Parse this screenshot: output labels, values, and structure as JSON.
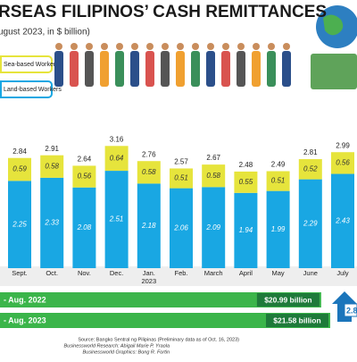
{
  "chart_data": {
    "type": "stacked-bar",
    "title": "RSEAS FILIPINOS’ CASH REMITTANCES",
    "subtitle": "ugust 2023, in $ billion)",
    "categories": [
      "Sept.",
      "Oct.",
      "Nov.",
      "Dec.",
      "Jan.",
      "Feb.",
      "March",
      "April",
      "May",
      "June",
      "July"
    ],
    "year_label": "2023",
    "series": [
      {
        "name": "Land-based Workers",
        "color": "#19a7e3",
        "values": [
          2.25,
          2.33,
          2.08,
          2.51,
          2.18,
          2.06,
          2.09,
          1.94,
          1.99,
          2.29,
          2.43
        ]
      },
      {
        "name": "Sea-based Workers",
        "color": "#e6e43c",
        "values": [
          0.59,
          0.58,
          0.56,
          0.64,
          0.58,
          0.51,
          0.58,
          0.55,
          0.51,
          0.52,
          0.56
        ]
      }
    ],
    "totals": [
      2.84,
      2.91,
      2.64,
      3.16,
      2.76,
      2.57,
      2.67,
      2.48,
      2.49,
      2.81,
      2.99
    ],
    "cumulative": {
      "labels": [
        "- Aug. 2022",
        "- Aug. 2023"
      ],
      "color": "#3bb54a",
      "values": [
        20.99,
        21.58
      ],
      "value_labels": [
        "$20.99 billion",
        "$21.58 billion"
      ],
      "change": "2.8"
    },
    "source": "Source: Bangko Sentral ng Pilipinas (Preliminary data as of Oct. 16, 2023)",
    "credits": [
      "Businessworld Research: Abigail Marie P. Yraola",
      "Businessworld Graphics: Bong R. Fortin"
    ]
  }
}
